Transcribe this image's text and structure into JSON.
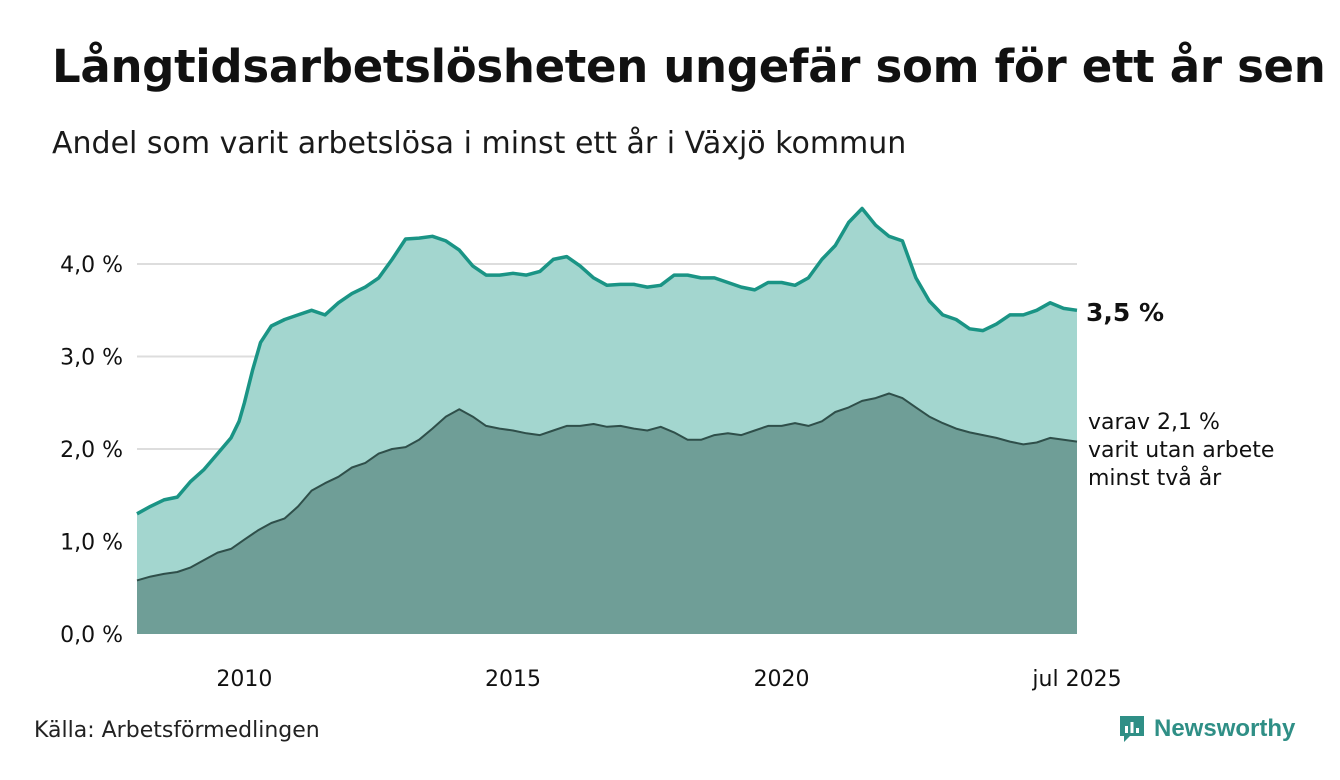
{
  "title": "Långtidsarbetslösheten ungefär som för ett år sen",
  "subtitle": "Andel som varit arbetslösa i minst ett år i Växjö kommun",
  "source": "Källa: Arbetsförmedlingen",
  "brand": "Newsworthy",
  "colors": {
    "main_line": "#1a9485",
    "main_fill": "#a3d6cf",
    "sub_line": "#2f4f4a",
    "sub_fill": "#6f9e97",
    "grid": "#dddddd",
    "brand": "#2f8f86"
  },
  "chart_data": {
    "type": "area",
    "x_label_ticks": [
      {
        "x": 2010.0,
        "label": "2010"
      },
      {
        "x": 2015.0,
        "label": "2015"
      },
      {
        "x": 2020.0,
        "label": "2020"
      },
      {
        "x": 2025.5,
        "label": "jul 2025"
      }
    ],
    "y_ticks": [
      {
        "v": 0,
        "label": "0,0 %"
      },
      {
        "v": 1,
        "label": "1,0 %"
      },
      {
        "v": 2,
        "label": "2,0 %"
      },
      {
        "v": 3,
        "label": "3,0 %"
      },
      {
        "v": 4,
        "label": "4,0 %"
      }
    ],
    "xlim": [
      2008.0,
      2025.5
    ],
    "ylim": [
      0,
      5
    ],
    "grid": true,
    "series": [
      {
        "key": "main",
        "end_label": "3,5 %",
        "points": [
          [
            2008.0,
            1.3
          ],
          [
            2008.25,
            1.38
          ],
          [
            2008.5,
            1.45
          ],
          [
            2008.75,
            1.48
          ],
          [
            2009.0,
            1.65
          ],
          [
            2009.25,
            1.78
          ],
          [
            2009.5,
            1.95
          ],
          [
            2009.75,
            2.12
          ],
          [
            2009.9,
            2.3
          ],
          [
            2010.0,
            2.5
          ],
          [
            2010.15,
            2.85
          ],
          [
            2010.3,
            3.15
          ],
          [
            2010.5,
            3.33
          ],
          [
            2010.75,
            3.4
          ],
          [
            2011.0,
            3.45
          ],
          [
            2011.25,
            3.5
          ],
          [
            2011.5,
            3.45
          ],
          [
            2011.75,
            3.58
          ],
          [
            2012.0,
            3.68
          ],
          [
            2012.25,
            3.75
          ],
          [
            2012.5,
            3.85
          ],
          [
            2012.75,
            4.05
          ],
          [
            2013.0,
            4.27
          ],
          [
            2013.25,
            4.28
          ],
          [
            2013.5,
            4.3
          ],
          [
            2013.75,
            4.25
          ],
          [
            2014.0,
            4.15
          ],
          [
            2014.25,
            3.98
          ],
          [
            2014.5,
            3.88
          ],
          [
            2014.75,
            3.88
          ],
          [
            2015.0,
            3.9
          ],
          [
            2015.25,
            3.88
          ],
          [
            2015.5,
            3.92
          ],
          [
            2015.75,
            4.05
          ],
          [
            2016.0,
            4.08
          ],
          [
            2016.25,
            3.98
          ],
          [
            2016.5,
            3.85
          ],
          [
            2016.75,
            3.77
          ],
          [
            2017.0,
            3.78
          ],
          [
            2017.25,
            3.78
          ],
          [
            2017.5,
            3.75
          ],
          [
            2017.75,
            3.77
          ],
          [
            2018.0,
            3.88
          ],
          [
            2018.25,
            3.88
          ],
          [
            2018.5,
            3.85
          ],
          [
            2018.75,
            3.85
          ],
          [
            2019.0,
            3.8
          ],
          [
            2019.25,
            3.75
          ],
          [
            2019.5,
            3.72
          ],
          [
            2019.75,
            3.8
          ],
          [
            2020.0,
            3.8
          ],
          [
            2020.25,
            3.77
          ],
          [
            2020.5,
            3.85
          ],
          [
            2020.75,
            4.05
          ],
          [
            2021.0,
            4.2
          ],
          [
            2021.25,
            4.45
          ],
          [
            2021.5,
            4.6
          ],
          [
            2021.75,
            4.42
          ],
          [
            2022.0,
            4.3
          ],
          [
            2022.25,
            4.25
          ],
          [
            2022.5,
            3.85
          ],
          [
            2022.75,
            3.6
          ],
          [
            2023.0,
            3.45
          ],
          [
            2023.25,
            3.4
          ],
          [
            2023.5,
            3.3
          ],
          [
            2023.75,
            3.28
          ],
          [
            2024.0,
            3.35
          ],
          [
            2024.25,
            3.45
          ],
          [
            2024.5,
            3.45
          ],
          [
            2024.75,
            3.5
          ],
          [
            2025.0,
            3.58
          ],
          [
            2025.25,
            3.52
          ],
          [
            2025.5,
            3.5
          ]
        ]
      },
      {
        "key": "sub",
        "end_label_lines": [
          "varav 2,1 %",
          "varit utan arbete",
          "minst två år"
        ],
        "points": [
          [
            2008.0,
            0.58
          ],
          [
            2008.25,
            0.62
          ],
          [
            2008.5,
            0.65
          ],
          [
            2008.75,
            0.67
          ],
          [
            2009.0,
            0.72
          ],
          [
            2009.25,
            0.8
          ],
          [
            2009.5,
            0.88
          ],
          [
            2009.75,
            0.92
          ],
          [
            2010.0,
            1.02
          ],
          [
            2010.25,
            1.12
          ],
          [
            2010.5,
            1.2
          ],
          [
            2010.75,
            1.25
          ],
          [
            2011.0,
            1.38
          ],
          [
            2011.25,
            1.55
          ],
          [
            2011.5,
            1.63
          ],
          [
            2011.75,
            1.7
          ],
          [
            2012.0,
            1.8
          ],
          [
            2012.25,
            1.85
          ],
          [
            2012.5,
            1.95
          ],
          [
            2012.75,
            2.0
          ],
          [
            2013.0,
            2.02
          ],
          [
            2013.25,
            2.1
          ],
          [
            2013.5,
            2.22
          ],
          [
            2013.75,
            2.35
          ],
          [
            2014.0,
            2.43
          ],
          [
            2014.25,
            2.35
          ],
          [
            2014.5,
            2.25
          ],
          [
            2014.75,
            2.22
          ],
          [
            2015.0,
            2.2
          ],
          [
            2015.25,
            2.17
          ],
          [
            2015.5,
            2.15
          ],
          [
            2015.75,
            2.2
          ],
          [
            2016.0,
            2.25
          ],
          [
            2016.25,
            2.25
          ],
          [
            2016.5,
            2.27
          ],
          [
            2016.75,
            2.24
          ],
          [
            2017.0,
            2.25
          ],
          [
            2017.25,
            2.22
          ],
          [
            2017.5,
            2.2
          ],
          [
            2017.75,
            2.24
          ],
          [
            2018.0,
            2.18
          ],
          [
            2018.25,
            2.1
          ],
          [
            2018.5,
            2.1
          ],
          [
            2018.75,
            2.15
          ],
          [
            2019.0,
            2.17
          ],
          [
            2019.25,
            2.15
          ],
          [
            2019.5,
            2.2
          ],
          [
            2019.75,
            2.25
          ],
          [
            2020.0,
            2.25
          ],
          [
            2020.25,
            2.28
          ],
          [
            2020.5,
            2.25
          ],
          [
            2020.75,
            2.3
          ],
          [
            2021.0,
            2.4
          ],
          [
            2021.25,
            2.45
          ],
          [
            2021.5,
            2.52
          ],
          [
            2021.75,
            2.55
          ],
          [
            2022.0,
            2.6
          ],
          [
            2022.25,
            2.55
          ],
          [
            2022.5,
            2.45
          ],
          [
            2022.75,
            2.35
          ],
          [
            2023.0,
            2.28
          ],
          [
            2023.25,
            2.22
          ],
          [
            2023.5,
            2.18
          ],
          [
            2023.75,
            2.15
          ],
          [
            2024.0,
            2.12
          ],
          [
            2024.25,
            2.08
          ],
          [
            2024.5,
            2.05
          ],
          [
            2024.75,
            2.07
          ],
          [
            2025.0,
            2.12
          ],
          [
            2025.25,
            2.1
          ],
          [
            2025.5,
            2.08
          ]
        ]
      }
    ]
  }
}
